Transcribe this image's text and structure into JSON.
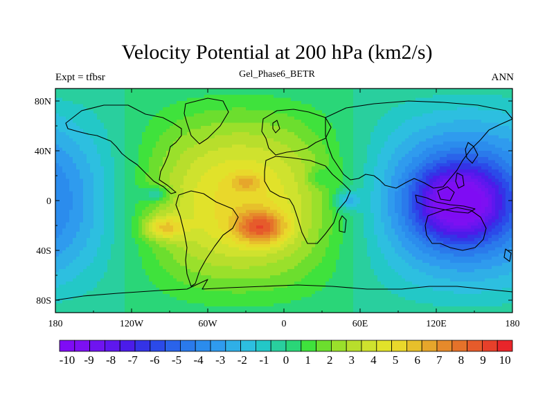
{
  "title": "Velocity Potential at 200 hPa (km2/s)",
  "left_string": "Expt = tfbsr",
  "center_string": "Gel_Phase6_BETR",
  "right_string": "ANN",
  "chart_data": {
    "type": "contour_map",
    "variable": "Velocity Potential at 200 hPa",
    "units": "km2/s",
    "projection": "cylindrical equidistant",
    "lon_range": [
      -180,
      180
    ],
    "lat_range": [
      -90,
      90
    ],
    "x_ticks": [
      {
        "lon": -180,
        "label": "180"
      },
      {
        "lon": -120,
        "label": "120W"
      },
      {
        "lon": -60,
        "label": "60W"
      },
      {
        "lon": 0,
        "label": "0"
      },
      {
        "lon": 60,
        "label": "60E"
      },
      {
        "lon": 120,
        "label": "120E"
      },
      {
        "lon": 180,
        "label": "180"
      }
    ],
    "y_ticks": [
      {
        "lat": 80,
        "label": "80N"
      },
      {
        "lat": 40,
        "label": "40N"
      },
      {
        "lat": 0,
        "label": "0"
      },
      {
        "lat": -40,
        "label": "40S"
      },
      {
        "lat": -80,
        "label": "80S"
      }
    ],
    "colorbar": {
      "min": -10.5,
      "max": 10.5,
      "labels": [
        "-10",
        "-9",
        "-8",
        "-7",
        "-6",
        "-5",
        "-4",
        "-3",
        "-2",
        "-1",
        "0",
        "1",
        "2",
        "3",
        "4",
        "5",
        "6",
        "7",
        "8",
        "9",
        "10"
      ],
      "colors": [
        "#7f0cf4",
        "#7d10f2",
        "#6f14f0",
        "#5e17ee",
        "#4b1ce9",
        "#3433e6",
        "#2b4ae9",
        "#2a63ea",
        "#2a7aeb",
        "#2b8ced",
        "#2f9bee",
        "#2fafe7",
        "#2dbfe0",
        "#23c8c7",
        "#29cf9e",
        "#2ad678",
        "#3fe23c",
        "#6cde2e",
        "#9ae02b",
        "#b8de2c",
        "#cfe22e",
        "#e1e22a",
        "#e9d82b",
        "#e7c02b",
        "#e6a62b",
        "#e68a2b",
        "#e5722a",
        "#e65b2b",
        "#e7402a",
        "#e8252a"
      ]
    },
    "field_features": [
      {
        "lon": 135,
        "lat": 0,
        "value": -10,
        "kind": "minimum"
      },
      {
        "lon": -18,
        "lat": -22,
        "value": 9,
        "kind": "maximum"
      },
      {
        "lon": -95,
        "lat": -22,
        "value": 8,
        "kind": "maximum"
      },
      {
        "lon": -30,
        "lat": 15,
        "value": 6,
        "kind": "local maximum"
      },
      {
        "lon": 50,
        "lat": 0,
        "value": 1,
        "kind": "local minimum"
      },
      {
        "lon": -100,
        "lat": 5,
        "value": 2,
        "kind": "local minimum"
      }
    ]
  }
}
